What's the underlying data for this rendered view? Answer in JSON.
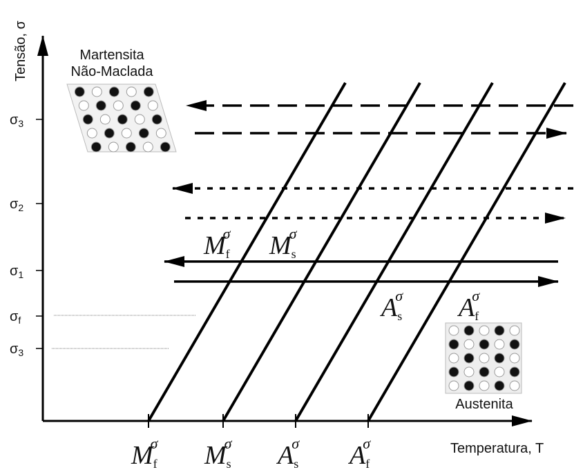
{
  "axes": {
    "y_label": "Tensão, σ",
    "x_label": "Temperatura, T"
  },
  "stress_levels": [
    {
      "base": "σ",
      "sub": "3"
    },
    {
      "base": "σ",
      "sub": "2"
    },
    {
      "base": "σ",
      "sub": "1"
    },
    {
      "base": "σ",
      "sub": "f"
    },
    {
      "base": "σ",
      "sub": "3"
    }
  ],
  "phases": {
    "martensite": [
      "Martensita",
      "Não-Maclada"
    ],
    "austenite": "Austenita"
  },
  "temperatures": [
    {
      "base": "M",
      "sub": "f",
      "sup": "σ"
    },
    {
      "base": "M",
      "sub": "s",
      "sup": "σ"
    },
    {
      "base": "A",
      "sub": "s",
      "sup": "σ"
    },
    {
      "base": "A",
      "sub": "f",
      "sup": "σ"
    }
  ],
  "line_labels": [
    {
      "base": "M",
      "sub": "f",
      "sup": "σ"
    },
    {
      "base": "M",
      "sub": "s",
      "sup": "σ"
    },
    {
      "base": "A",
      "sub": "s",
      "sup": "σ"
    },
    {
      "base": "A",
      "sub": "f",
      "sup": "σ"
    }
  ]
}
